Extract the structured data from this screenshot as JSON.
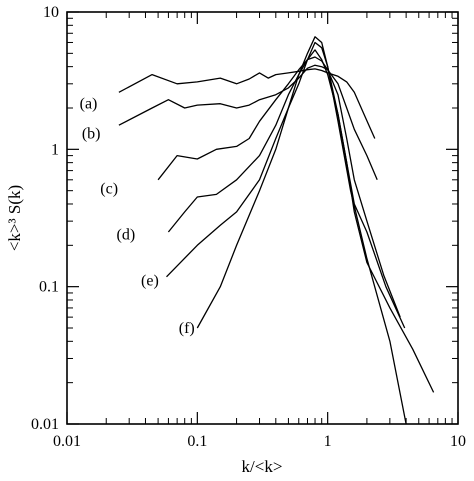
{
  "chart_data": {
    "type": "line",
    "xlabel": "k/<k>",
    "ylabel": "<k>³ S(k)",
    "xscale": "log",
    "yscale": "log",
    "xlim": [
      0.01,
      10
    ],
    "ylim": [
      0.01,
      10
    ],
    "grid": false,
    "legend": "none",
    "x_ticks": [
      {
        "value": 0.01,
        "label": "0.01"
      },
      {
        "value": 0.1,
        "label": "0.1"
      },
      {
        "value": 1,
        "label": "1"
      },
      {
        "value": 10,
        "label": "10"
      }
    ],
    "y_ticks": [
      {
        "value": 0.01,
        "label": "0.01"
      },
      {
        "value": 0.1,
        "label": "0.1"
      },
      {
        "value": 1,
        "label": "1"
      },
      {
        "value": 10,
        "label": "10"
      }
    ],
    "series": [
      {
        "label": "(a)",
        "label_at": [
          0.0125,
          2.15
        ],
        "points": [
          [
            0.025,
            2.6
          ],
          [
            0.045,
            3.5
          ],
          [
            0.07,
            3.0
          ],
          [
            0.1,
            3.1
          ],
          [
            0.15,
            3.3
          ],
          [
            0.2,
            3.0
          ],
          [
            0.25,
            3.25
          ],
          [
            0.3,
            3.6
          ],
          [
            0.35,
            3.3
          ],
          [
            0.4,
            3.5
          ],
          [
            0.5,
            3.6
          ],
          [
            0.6,
            3.7
          ],
          [
            0.7,
            3.8
          ],
          [
            0.8,
            3.85
          ],
          [
            0.9,
            3.75
          ],
          [
            1.0,
            3.6
          ],
          [
            1.2,
            3.4
          ],
          [
            1.4,
            3.1
          ],
          [
            1.6,
            2.6
          ],
          [
            1.9,
            1.8
          ],
          [
            2.3,
            1.2
          ]
        ]
      },
      {
        "label": "(b)",
        "label_at": [
          0.013,
          1.3
        ],
        "points": [
          [
            0.025,
            1.5
          ],
          [
            0.045,
            2.0
          ],
          [
            0.06,
            2.3
          ],
          [
            0.08,
            2.0
          ],
          [
            0.1,
            2.1
          ],
          [
            0.15,
            2.15
          ],
          [
            0.2,
            2.0
          ],
          [
            0.25,
            2.1
          ],
          [
            0.3,
            2.3
          ],
          [
            0.4,
            2.5
          ],
          [
            0.5,
            2.8
          ],
          [
            0.6,
            3.3
          ],
          [
            0.7,
            3.9
          ],
          [
            0.8,
            4.1
          ],
          [
            0.9,
            4.0
          ],
          [
            1.0,
            3.8
          ],
          [
            1.2,
            3.0
          ],
          [
            1.4,
            2.0
          ],
          [
            1.6,
            1.4
          ],
          [
            2.0,
            0.9
          ],
          [
            2.4,
            0.6
          ]
        ]
      },
      {
        "label": "(c)",
        "label_at": [
          0.018,
          0.52
        ],
        "points": [
          [
            0.05,
            0.6
          ],
          [
            0.07,
            0.9
          ],
          [
            0.1,
            0.85
          ],
          [
            0.14,
            1.0
          ],
          [
            0.2,
            1.05
          ],
          [
            0.25,
            1.2
          ],
          [
            0.3,
            1.6
          ],
          [
            0.4,
            2.3
          ],
          [
            0.5,
            3.0
          ],
          [
            0.6,
            3.8
          ],
          [
            0.7,
            4.5
          ],
          [
            0.8,
            4.7
          ],
          [
            0.9,
            4.4
          ],
          [
            1.0,
            3.8
          ],
          [
            1.2,
            2.5
          ],
          [
            1.4,
            1.2
          ],
          [
            1.6,
            0.6
          ],
          [
            2.0,
            0.3
          ],
          [
            2.7,
            0.12
          ],
          [
            3.6,
            0.06
          ]
        ]
      },
      {
        "label": "(d)",
        "label_at": [
          0.024,
          0.24
        ],
        "points": [
          [
            0.06,
            0.25
          ],
          [
            0.08,
            0.35
          ],
          [
            0.1,
            0.45
          ],
          [
            0.14,
            0.47
          ],
          [
            0.2,
            0.6
          ],
          [
            0.3,
            0.9
          ],
          [
            0.4,
            1.5
          ],
          [
            0.5,
            2.5
          ],
          [
            0.6,
            3.5
          ],
          [
            0.7,
            4.5
          ],
          [
            0.8,
            5.3
          ],
          [
            0.9,
            4.5
          ],
          [
            1.0,
            3.5
          ],
          [
            1.2,
            1.8
          ],
          [
            1.4,
            0.8
          ],
          [
            1.6,
            0.4
          ],
          [
            2.0,
            0.25
          ],
          [
            2.8,
            0.1
          ],
          [
            3.9,
            0.05
          ]
        ]
      },
      {
        "label": "(e)",
        "label_at": [
          0.037,
          0.111
        ],
        "points": [
          [
            0.058,
            0.118
          ],
          [
            0.1,
            0.2
          ],
          [
            0.15,
            0.28
          ],
          [
            0.2,
            0.35
          ],
          [
            0.3,
            0.6
          ],
          [
            0.4,
            1.2
          ],
          [
            0.5,
            2.0
          ],
          [
            0.6,
            3.0
          ],
          [
            0.7,
            4.5
          ],
          [
            0.8,
            6.0
          ],
          [
            0.9,
            5.5
          ],
          [
            1.0,
            4.0
          ],
          [
            1.2,
            1.8
          ],
          [
            1.4,
            0.8
          ],
          [
            1.6,
            0.35
          ],
          [
            2.0,
            0.15
          ],
          [
            3.0,
            0.07
          ],
          [
            4.5,
            0.035
          ],
          [
            6.5,
            0.017
          ]
        ]
      },
      {
        "label": "(f)",
        "label_at": [
          0.072,
          0.05
        ],
        "points": [
          [
            0.1,
            0.05
          ],
          [
            0.15,
            0.1
          ],
          [
            0.2,
            0.2
          ],
          [
            0.3,
            0.5
          ],
          [
            0.4,
            1.0
          ],
          [
            0.5,
            2.0
          ],
          [
            0.6,
            3.5
          ],
          [
            0.7,
            5.0
          ],
          [
            0.8,
            6.6
          ],
          [
            0.9,
            6.0
          ],
          [
            1.0,
            4.0
          ],
          [
            1.2,
            1.6
          ],
          [
            1.5,
            0.5
          ],
          [
            2.0,
            0.16
          ],
          [
            3.0,
            0.04
          ],
          [
            4.0,
            0.01
          ]
        ]
      }
    ]
  }
}
